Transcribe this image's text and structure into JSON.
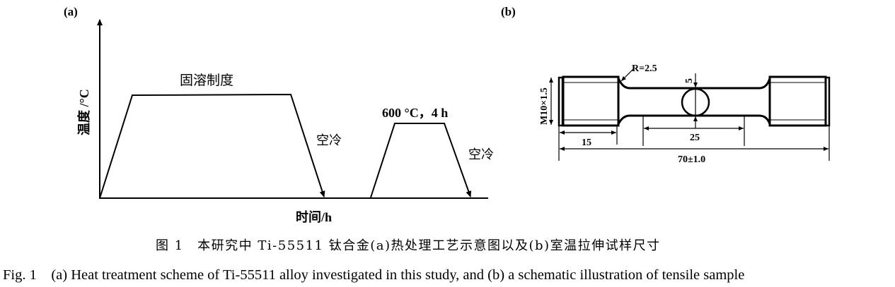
{
  "panel_a": {
    "label": "(a)",
    "y_axis_label": "温度 /°C",
    "x_axis_label": "时间/h",
    "solution_label": "固溶制度",
    "aging_label": "600 °C，4 h",
    "cooling_label_1": "空冷",
    "cooling_label_2": "空冷"
  },
  "panel_b": {
    "label": "(b)",
    "radius": "R=2.5",
    "thread": "M10×1.5",
    "diameter": "5",
    "grip_length": "15",
    "gauge_length": "25",
    "total_length": "70±1.0"
  },
  "caption": {
    "zh": "图 1　本研究中 Ti-55511 钛合金(a)热处理工艺示意图以及(b)室温拉伸试样尺寸",
    "en": "Fig. 1　(a) Heat treatment scheme of Ti-55511 alloy investigated in this study, and (b) a schematic illustration of tensile sample"
  }
}
